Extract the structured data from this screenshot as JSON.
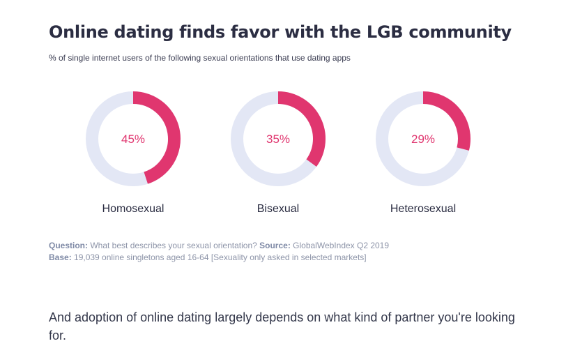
{
  "heading": {
    "title": "Online dating finds favor with the LGB community",
    "subtitle": "% of single internet users of the following sexual orientations that use dating apps"
  },
  "chart_data": {
    "type": "pie",
    "variant": "donut",
    "title": "Online dating finds favor with the LGB community",
    "subtitle": "% of single internet users of the following sexual orientations that use dating apps",
    "unit": "%",
    "categories": [
      "Homosexual",
      "Bisexual",
      "Heterosexual"
    ],
    "values": [
      45,
      35,
      29
    ],
    "value_labels": [
      "45%",
      "35%",
      "29%"
    ],
    "colors": {
      "value": "#e0366f",
      "remainder": "#e3e7f5",
      "value_text": "#e0366f",
      "category_text": "#2b2d42"
    }
  },
  "notes": {
    "question_label": "Question:",
    "question_text": " What best describes your sexual orientation? ",
    "source_label": "Source:",
    "source_text": " GlobalWebIndex Q2 2019",
    "base_label": "Base:",
    "base_text": " 19,039 online singletons aged 16-64 [Sexuality only asked in selected markets]"
  },
  "outro": {
    "text": "And adoption of online dating largely depends on what kind of partner you're looking for."
  }
}
